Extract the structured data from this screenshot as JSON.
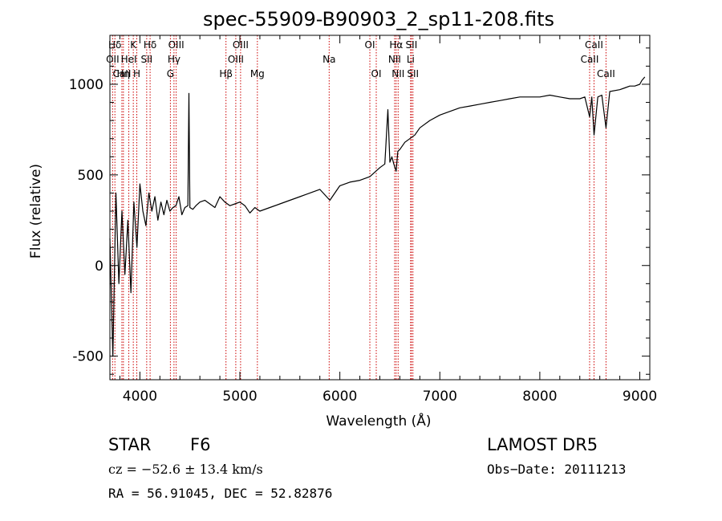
{
  "chart_data": {
    "type": "line",
    "title": "spec-55909-B90903_2_sp11-208.fits",
    "xlabel": "Wavelength (Å)",
    "ylabel": "Flux (relative)",
    "xlim": [
      3700,
      9100
    ],
    "ylim": [
      -630,
      1270
    ],
    "x_ticks": [
      4000,
      5000,
      6000,
      7000,
      8000,
      9000
    ],
    "y_ticks": [
      -500,
      0,
      500,
      1000
    ],
    "grid": false,
    "legend": "none",
    "series": [
      {
        "color": "#000000",
        "x": [
          3700,
          3730,
          3760,
          3790,
          3820,
          3850,
          3880,
          3910,
          3940,
          3970,
          4000,
          4030,
          4060,
          4090,
          4120,
          4150,
          4180,
          4210,
          4240,
          4270,
          4300,
          4330,
          4360,
          4390,
          4420,
          4450,
          4480,
          4490,
          4500,
          4530,
          4560,
          4600,
          4650,
          4700,
          4750,
          4800,
          4850,
          4900,
          4950,
          5000,
          5050,
          5100,
          5150,
          5200,
          5300,
          5400,
          5500,
          5600,
          5700,
          5800,
          5900,
          6000,
          6100,
          6200,
          6300,
          6400,
          6450,
          6480,
          6500,
          6520,
          6540,
          6563,
          6580,
          6600,
          6650,
          6700,
          6750,
          6800,
          6900,
          7000,
          7100,
          7200,
          7300,
          7400,
          7500,
          7600,
          7700,
          7800,
          7900,
          8000,
          8100,
          8200,
          8300,
          8400,
          8450,
          8498,
          8520,
          8542,
          8580,
          8620,
          8662,
          8700,
          8800,
          8850,
          8900,
          8950,
          9000,
          9020,
          9050
        ],
        "y": [
          150,
          -500,
          400,
          -100,
          300,
          -50,
          250,
          -150,
          350,
          100,
          450,
          300,
          220,
          400,
          300,
          380,
          250,
          350,
          280,
          360,
          300,
          320,
          330,
          380,
          280,
          320,
          330,
          950,
          320,
          310,
          330,
          350,
          360,
          340,
          320,
          380,
          350,
          330,
          340,
          350,
          330,
          290,
          320,
          300,
          320,
          340,
          360,
          380,
          400,
          420,
          360,
          440,
          460,
          470,
          490,
          540,
          560,
          860,
          570,
          600,
          560,
          520,
          630,
          640,
          680,
          700,
          720,
          760,
          800,
          830,
          850,
          870,
          880,
          890,
          900,
          910,
          920,
          930,
          930,
          930,
          940,
          930,
          920,
          920,
          930,
          820,
          930,
          720,
          930,
          940,
          760,
          960,
          970,
          980,
          990,
          990,
          1000,
          1020,
          1040
        ]
      }
    ],
    "spectral_lines": [
      {
        "label": "Hδ",
        "x": 3750,
        "row": 0
      },
      {
        "label": "OII",
        "x": 3727,
        "row": 1
      },
      {
        "label": "CaII",
        "x": 3820,
        "row": 2
      },
      {
        "label": "Hη",
        "x": 3835,
        "row": 2
      },
      {
        "label": "HeI",
        "x": 3889,
        "row": 1
      },
      {
        "label": "K",
        "x": 3934,
        "row": 0
      },
      {
        "label": "H",
        "x": 3969,
        "row": 2
      },
      {
        "label": "Hδ",
        "x": 4102,
        "row": 0
      },
      {
        "label": "SII",
        "x": 4068,
        "row": 1
      },
      {
        "label": "OIII",
        "x": 4363,
        "row": 0
      },
      {
        "label": "Hγ",
        "x": 4341,
        "row": 1
      },
      {
        "label": "G",
        "x": 4305,
        "row": 2
      },
      {
        "label": "Hβ",
        "x": 4861,
        "row": 2
      },
      {
        "label": "OIII",
        "x": 5007,
        "row": 0
      },
      {
        "label": "OIII",
        "x": 4959,
        "row": 1
      },
      {
        "label": "Mg",
        "x": 5175,
        "row": 2
      },
      {
        "label": "Na",
        "x": 5893,
        "row": 1
      },
      {
        "label": "OI",
        "x": 6300,
        "row": 0
      },
      {
        "label": "OI",
        "x": 6364,
        "row": 2
      },
      {
        "label": "Hα",
        "x": 6563,
        "row": 0
      },
      {
        "label": "SII",
        "x": 6716,
        "row": 0
      },
      {
        "label": "NII",
        "x": 6548,
        "row": 1
      },
      {
        "label": "Li",
        "x": 6708,
        "row": 1
      },
      {
        "label": "NII",
        "x": 6583,
        "row": 2
      },
      {
        "label": "SII",
        "x": 6731,
        "row": 2
      },
      {
        "label": "CaII",
        "x": 8542,
        "row": 0
      },
      {
        "label": "CaII",
        "x": 8498,
        "row": 1
      },
      {
        "label": "CaII",
        "x": 8662,
        "row": 2
      }
    ],
    "line_marker_color": "#cc0000"
  },
  "info": {
    "class_label": "STAR",
    "subclass": "F6",
    "survey": "LAMOST  DR5",
    "cz": "cz = −52.6 ± 13.4 km/s",
    "obs_date": "Obs−Date: 20111213",
    "radec": "RA =  56.91045, DEC =  52.82876"
  }
}
